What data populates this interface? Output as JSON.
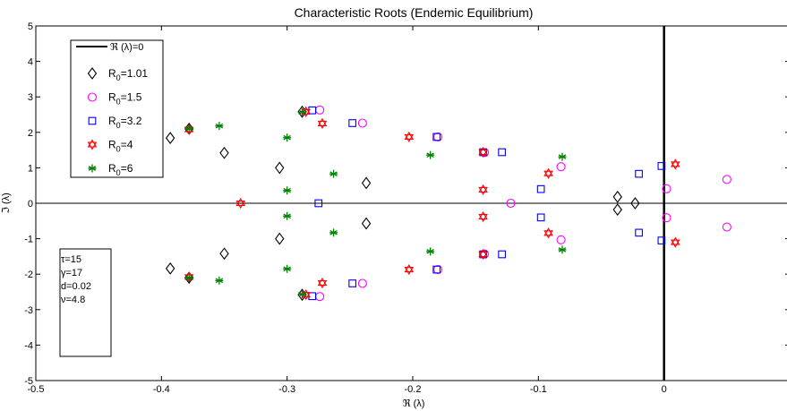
{
  "chart_data": {
    "type": "scatter",
    "title": "Characteristic Roots (Endemic Equilibrium)",
    "xlabel": "ℜ (λ)",
    "ylabel": "ℑ (λ)",
    "xlim": [
      -0.5,
      0.1
    ],
    "ylim": [
      -5,
      5
    ],
    "x_ticks": [
      -0.5,
      -0.4,
      -0.3,
      -0.2,
      -0.1,
      0
    ],
    "x_tick_labels": [
      "-0.5",
      "-0.4",
      "-0.3",
      "-0.2",
      "-0.1",
      "0"
    ],
    "y_ticks": [
      -5,
      -4,
      -3,
      -2,
      -1,
      0,
      1,
      2,
      3,
      4,
      5
    ],
    "y_tick_labels": [
      "-5",
      "-4",
      "-3",
      "-2",
      "-1",
      "0",
      "1",
      "2",
      "3",
      "4",
      "5"
    ],
    "grid": false,
    "legend_position": "top-left",
    "reference_line": {
      "label": "ℜ (λ)=0",
      "x": 0
    },
    "series": [
      {
        "name": "R0=1.01",
        "label_base": "R",
        "label_sub": "0",
        "label_tail": "=1.01",
        "marker": "diamond",
        "color": "#000000",
        "points": [
          [
            -0.393,
            1.84
          ],
          [
            -0.393,
            -1.84
          ],
          [
            -0.378,
            2.1
          ],
          [
            -0.378,
            -2.1
          ],
          [
            -0.35,
            1.42
          ],
          [
            -0.35,
            -1.42
          ],
          [
            -0.306,
            1.0
          ],
          [
            -0.306,
            -1.0
          ],
          [
            -0.288,
            2.58
          ],
          [
            -0.288,
            -2.58
          ],
          [
            -0.237,
            0.57
          ],
          [
            -0.237,
            -0.57
          ],
          [
            -0.037,
            0.18
          ],
          [
            -0.037,
            -0.18
          ],
          [
            -0.023,
            0.0
          ]
        ]
      },
      {
        "name": "R0=1.5",
        "label_base": "R",
        "label_sub": "0",
        "label_tail": "=1.5",
        "marker": "circle",
        "color": "#ff00ff",
        "points": [
          [
            -0.274,
            2.63
          ],
          [
            -0.274,
            -2.63
          ],
          [
            -0.24,
            2.26
          ],
          [
            -0.24,
            -2.26
          ],
          [
            -0.18,
            1.87
          ],
          [
            -0.18,
            -1.87
          ],
          [
            -0.143,
            1.43
          ],
          [
            -0.143,
            -1.43
          ],
          [
            -0.122,
            0.0
          ],
          [
            -0.082,
            1.03
          ],
          [
            -0.082,
            -1.03
          ],
          [
            0.002,
            0.41
          ],
          [
            0.002,
            -0.41
          ],
          [
            0.05,
            0.67
          ],
          [
            0.05,
            -0.67
          ]
        ]
      },
      {
        "name": "R0=3.2",
        "label_base": "R",
        "label_sub": "0",
        "label_tail": "=3.2",
        "marker": "square",
        "color": "#0000ff",
        "points": [
          [
            -0.28,
            2.62
          ],
          [
            -0.28,
            -2.62
          ],
          [
            -0.275,
            0.0
          ],
          [
            -0.248,
            2.26
          ],
          [
            -0.248,
            -2.26
          ],
          [
            -0.181,
            1.87
          ],
          [
            -0.181,
            -1.87
          ],
          [
            -0.144,
            1.44
          ],
          [
            -0.144,
            -1.44
          ],
          [
            -0.129,
            1.44
          ],
          [
            -0.129,
            -1.44
          ],
          [
            -0.098,
            0.4
          ],
          [
            -0.098,
            -0.4
          ],
          [
            -0.02,
            0.83
          ],
          [
            -0.02,
            -0.83
          ],
          [
            -0.002,
            1.05
          ],
          [
            -0.002,
            -1.05
          ]
        ]
      },
      {
        "name": "R0=4",
        "label_base": "R",
        "label_sub": "0",
        "label_tail": "=4",
        "marker": "hexagram",
        "color": "#ff0000",
        "points": [
          [
            -0.378,
            2.08
          ],
          [
            -0.378,
            -2.08
          ],
          [
            -0.337,
            0.0
          ],
          [
            -0.285,
            2.58
          ],
          [
            -0.285,
            -2.58
          ],
          [
            -0.272,
            2.25
          ],
          [
            -0.272,
            -2.25
          ],
          [
            -0.203,
            1.87
          ],
          [
            -0.203,
            -1.87
          ],
          [
            -0.144,
            1.44
          ],
          [
            -0.144,
            -1.44
          ],
          [
            -0.144,
            0.38
          ],
          [
            -0.144,
            -0.38
          ],
          [
            -0.092,
            0.84
          ],
          [
            -0.092,
            -0.84
          ],
          [
            0.009,
            1.1
          ],
          [
            0.009,
            -1.1
          ]
        ]
      },
      {
        "name": "R0=6",
        "label_base": "R",
        "label_sub": "0",
        "label_tail": "=6",
        "marker": "asterisk",
        "color": "#008000",
        "points": [
          [
            -0.378,
            2.1
          ],
          [
            -0.378,
            -2.1
          ],
          [
            -0.354,
            2.18
          ],
          [
            -0.354,
            -2.18
          ],
          [
            -0.3,
            1.85
          ],
          [
            -0.3,
            -1.85
          ],
          [
            -0.3,
            0.36
          ],
          [
            -0.3,
            -0.36
          ],
          [
            -0.288,
            2.57
          ],
          [
            -0.288,
            -2.57
          ],
          [
            -0.263,
            0.83
          ],
          [
            -0.263,
            -0.83
          ],
          [
            -0.186,
            1.36
          ],
          [
            -0.186,
            -1.36
          ],
          [
            -0.081,
            1.31
          ],
          [
            -0.081,
            -1.31
          ]
        ]
      }
    ],
    "annotation_lines": [
      "τ=15",
      "γ=17",
      "d=0.02",
      "ν=4.8"
    ]
  }
}
